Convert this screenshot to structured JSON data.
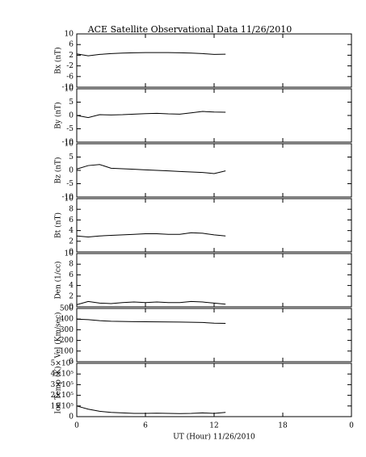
{
  "title": "ACE Satellite Observational Data   11/26/2010",
  "x_label": "UT (Hour)  11/26/2010",
  "chart_data": [
    {
      "type": "line",
      "y_label": "Bx (nT)",
      "x": [
        0,
        1,
        2,
        3,
        4,
        5,
        6,
        7,
        8,
        9,
        10,
        11,
        12,
        13
      ],
      "values": [
        2.5,
        1.8,
        2.3,
        2.6,
        2.8,
        2.9,
        3,
        3,
        3,
        2.9,
        2.8,
        2.6,
        2.3,
        2.4
      ],
      "color": "#000000",
      "ylim": [
        -10,
        10
      ],
      "yticks": [
        -10,
        -6,
        -2,
        2,
        6,
        10
      ],
      "xlim": [
        0,
        24
      ],
      "xticks": [
        0,
        6,
        12,
        18,
        {
          "value": 24,
          "label": "0"
        }
      ]
    },
    {
      "type": "line",
      "y_label": "By (nT)",
      "x": [
        0,
        1,
        2,
        3,
        4,
        5,
        6,
        7,
        8,
        9,
        10,
        11,
        12,
        13
      ],
      "values": [
        0,
        -0.8,
        0.3,
        0.2,
        0.3,
        0.5,
        0.7,
        0.8,
        0.6,
        0.5,
        1,
        1.5,
        1.3,
        1.2
      ],
      "color": "#000000",
      "ylim": [
        -10,
        10
      ],
      "yticks": [
        -10,
        -5,
        0,
        5,
        10
      ],
      "xlim": [
        0,
        24
      ],
      "xticks": [
        0,
        6,
        12,
        18,
        {
          "value": 24,
          "label": "0"
        }
      ]
    },
    {
      "type": "line",
      "y_label": "Bz (nT)",
      "x": [
        0,
        1,
        2,
        3,
        4,
        5,
        6,
        7,
        8,
        9,
        10,
        11,
        12,
        13
      ],
      "values": [
        0.5,
        1.8,
        2.2,
        0.8,
        0.6,
        0.4,
        0.2,
        0,
        -0.2,
        -0.4,
        -0.6,
        -0.8,
        -1.2,
        -0.2
      ],
      "color": "#000000",
      "ylim": [
        -10,
        10
      ],
      "yticks": [
        -10,
        -5,
        0,
        5,
        10
      ],
      "xlim": [
        0,
        24
      ],
      "xticks": [
        0,
        6,
        12,
        18,
        {
          "value": 24,
          "label": "0"
        }
      ]
    },
    {
      "type": "line",
      "y_label": "Bt (nT)",
      "x": [
        0,
        1,
        2,
        3,
        4,
        5,
        6,
        7,
        8,
        9,
        10,
        11,
        12,
        13
      ],
      "values": [
        3,
        2.8,
        3,
        3.1,
        3.2,
        3.3,
        3.4,
        3.4,
        3.3,
        3.3,
        3.6,
        3.5,
        3.2,
        3
      ],
      "color": "#000000",
      "ylim": [
        0,
        10
      ],
      "yticks": [
        0,
        2,
        4,
        6,
        8,
        10
      ],
      "xlim": [
        0,
        24
      ],
      "xticks": [
        0,
        6,
        12,
        18,
        {
          "value": 24,
          "label": "0"
        }
      ]
    },
    {
      "type": "line",
      "y_label": "Den (1/cc)",
      "x": [
        0,
        1,
        2,
        3,
        4,
        5,
        6,
        7,
        8,
        9,
        10,
        11,
        12,
        13
      ],
      "values": [
        0.4,
        1,
        0.7,
        0.6,
        0.8,
        0.9,
        0.8,
        0.9,
        0.8,
        0.8,
        1,
        0.9,
        0.7,
        0.5
      ],
      "color": "#000000",
      "ylim": [
        0,
        10
      ],
      "yticks": [
        0,
        2,
        4,
        6,
        8,
        10
      ],
      "xlim": [
        0,
        24
      ],
      "xticks": [
        0,
        6,
        12,
        18,
        {
          "value": 24,
          "label": "0"
        }
      ]
    },
    {
      "type": "line",
      "y_label": "Vel (Km/sec)",
      "x": [
        0,
        1,
        2,
        3,
        4,
        5,
        6,
        7,
        8,
        9,
        10,
        11,
        12,
        13
      ],
      "values": [
        400,
        395,
        385,
        380,
        378,
        376,
        375,
        374,
        373,
        372,
        370,
        368,
        362,
        360
      ],
      "color": "#000000",
      "ylim": [
        0,
        500
      ],
      "yticks": [
        0,
        100,
        200,
        300,
        400,
        500
      ],
      "xlim": [
        0,
        24
      ],
      "xticks": [
        0,
        6,
        12,
        18,
        {
          "value": 24,
          "label": "0"
        }
      ]
    },
    {
      "type": "line",
      "y_label": "Ion Temp (K)",
      "x": [
        0,
        1,
        2,
        3,
        4,
        5,
        6,
        7,
        8,
        9,
        10,
        11,
        12,
        13
      ],
      "values": [
        100000,
        70000,
        50000,
        40000,
        35000,
        30000,
        30000,
        32000,
        30000,
        28000,
        30000,
        35000,
        30000,
        40000
      ],
      "color": "#000000",
      "ylim": [
        0,
        500000
      ],
      "yticks": [
        0,
        {
          "value": 100000,
          "label": "1×10⁵"
        },
        {
          "value": 200000,
          "label": "2×10⁵"
        },
        {
          "value": 300000,
          "label": "3×10⁵"
        },
        {
          "value": 400000,
          "label": "4×10⁵"
        },
        {
          "value": 500000,
          "label": "5×10⁵"
        }
      ],
      "xlim": [
        0,
        24
      ],
      "xticks": [
        0,
        6,
        12,
        18,
        {
          "value": 24,
          "label": "0"
        }
      ]
    }
  ]
}
